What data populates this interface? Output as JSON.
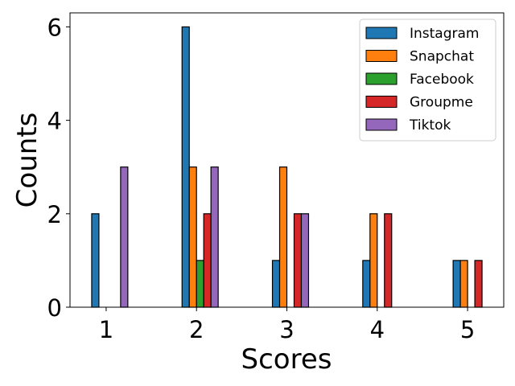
{
  "chart_data": {
    "type": "bar",
    "title": "",
    "xlabel": "Scores",
    "ylabel": "Counts",
    "categories": [
      "1",
      "2",
      "3",
      "4",
      "5"
    ],
    "x": [
      1,
      2,
      3,
      4,
      5
    ],
    "ylim": [
      0,
      6.3
    ],
    "yticks": [
      0,
      2,
      4,
      6
    ],
    "grid": false,
    "legend_position": "top-right",
    "series": [
      {
        "name": "Instagram",
        "color": "#1f77b4",
        "values": [
          2,
          6,
          1,
          1,
          1
        ]
      },
      {
        "name": "Snapchat",
        "color": "#ff7f0e",
        "values": [
          0,
          3,
          3,
          2,
          1
        ]
      },
      {
        "name": "Facebook",
        "color": "#2ca02c",
        "values": [
          0,
          1,
          0,
          0,
          0
        ]
      },
      {
        "name": "Groupme",
        "color": "#d62728",
        "values": [
          0,
          2,
          2,
          2,
          1
        ]
      },
      {
        "name": "Tiktok",
        "color": "#9467bd",
        "values": [
          3,
          3,
          2,
          0,
          0
        ]
      }
    ]
  }
}
